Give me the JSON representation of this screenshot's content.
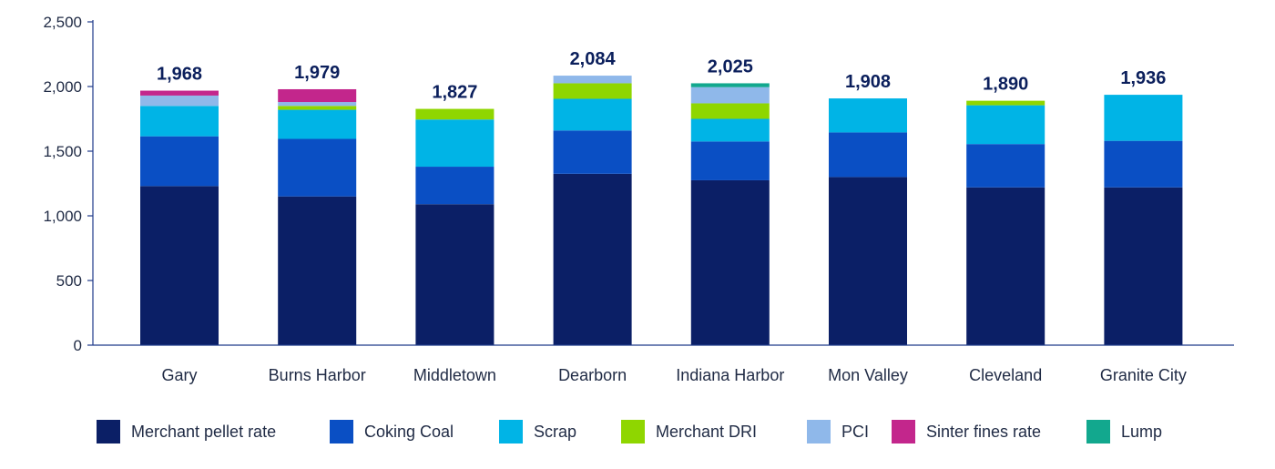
{
  "chart_data": {
    "type": "bar",
    "stacked": true,
    "title": "",
    "xlabel": "",
    "ylabel": "",
    "ylim": [
      0,
      2500
    ],
    "yticks": [
      0,
      500,
      1000,
      1500,
      2000,
      2500
    ],
    "ytick_labels": [
      "0",
      "500",
      "1,000",
      "1,500",
      "2,000",
      "2,500"
    ],
    "grid": false,
    "legend_position": "bottom",
    "categories": [
      "Gary",
      "Burns Harbor",
      "Middletown",
      "Dearborn",
      "Indiana Harbor",
      "Mon Valley",
      "Cleveland",
      "Granite City"
    ],
    "totals": [
      1968,
      1979,
      1827,
      2084,
      2025,
      1908,
      1890,
      1936
    ],
    "total_labels": [
      "1,968",
      "1,979",
      "1,827",
      "2,084",
      "2,025",
      "1,908",
      "1,890",
      "1,936"
    ],
    "series": [
      {
        "name": "Merchant pellet rate",
        "color": "#0b1f66",
        "values": [
          1230,
          1150,
          1090,
          1325,
          1275,
          1300,
          1220,
          1220
        ]
      },
      {
        "name": "Coking Coal",
        "color": "#0a4fc4",
        "values": [
          385,
          445,
          290,
          335,
          300,
          345,
          335,
          360
        ]
      },
      {
        "name": "Scrap",
        "color": "#00b4e6",
        "values": [
          235,
          225,
          365,
          245,
          175,
          263,
          300,
          356
        ]
      },
      {
        "name": "Merchant DRI",
        "color": "#8fd600",
        "values": [
          0,
          30,
          82,
          120,
          120,
          0,
          35,
          0
        ]
      },
      {
        "name": "PCI",
        "color": "#8fb8ea",
        "values": [
          80,
          30,
          0,
          59,
          125,
          0,
          0,
          0
        ]
      },
      {
        "name": "Sinter fines rate",
        "color": "#c3268c",
        "values": [
          38,
          99,
          0,
          0,
          0,
          0,
          0,
          0
        ]
      },
      {
        "name": "Lump",
        "color": "#12a88e",
        "values": [
          0,
          0,
          0,
          0,
          30,
          0,
          0,
          0
        ]
      }
    ]
  }
}
